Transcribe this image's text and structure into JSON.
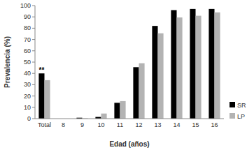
{
  "chart_data": {
    "type": "bar",
    "categories": [
      "Total",
      "8",
      "9",
      "10",
      "11",
      "12",
      "13",
      "14",
      "15",
      "16"
    ],
    "series": [
      {
        "name": "SR",
        "color": "#000000",
        "values": [
          40,
          0,
          0.8,
          1.5,
          14,
          45.5,
          82,
          96,
          97,
          97
        ]
      },
      {
        "name": "LP",
        "color": "#b3b3b3",
        "values": [
          34,
          0,
          0.3,
          4.5,
          15.5,
          49,
          75.5,
          89.5,
          91,
          94
        ]
      }
    ],
    "x_label": "Edad (años)",
    "y_label": "Prevalencia (%)",
    "annotations": [
      {
        "text": "**",
        "category": "Total"
      }
    ],
    "ylim": [
      0,
      100
    ],
    "yticks": [
      0,
      10,
      20,
      30,
      40,
      50,
      60,
      70,
      80,
      90,
      100
    ],
    "grid": false,
    "legend": "right"
  }
}
